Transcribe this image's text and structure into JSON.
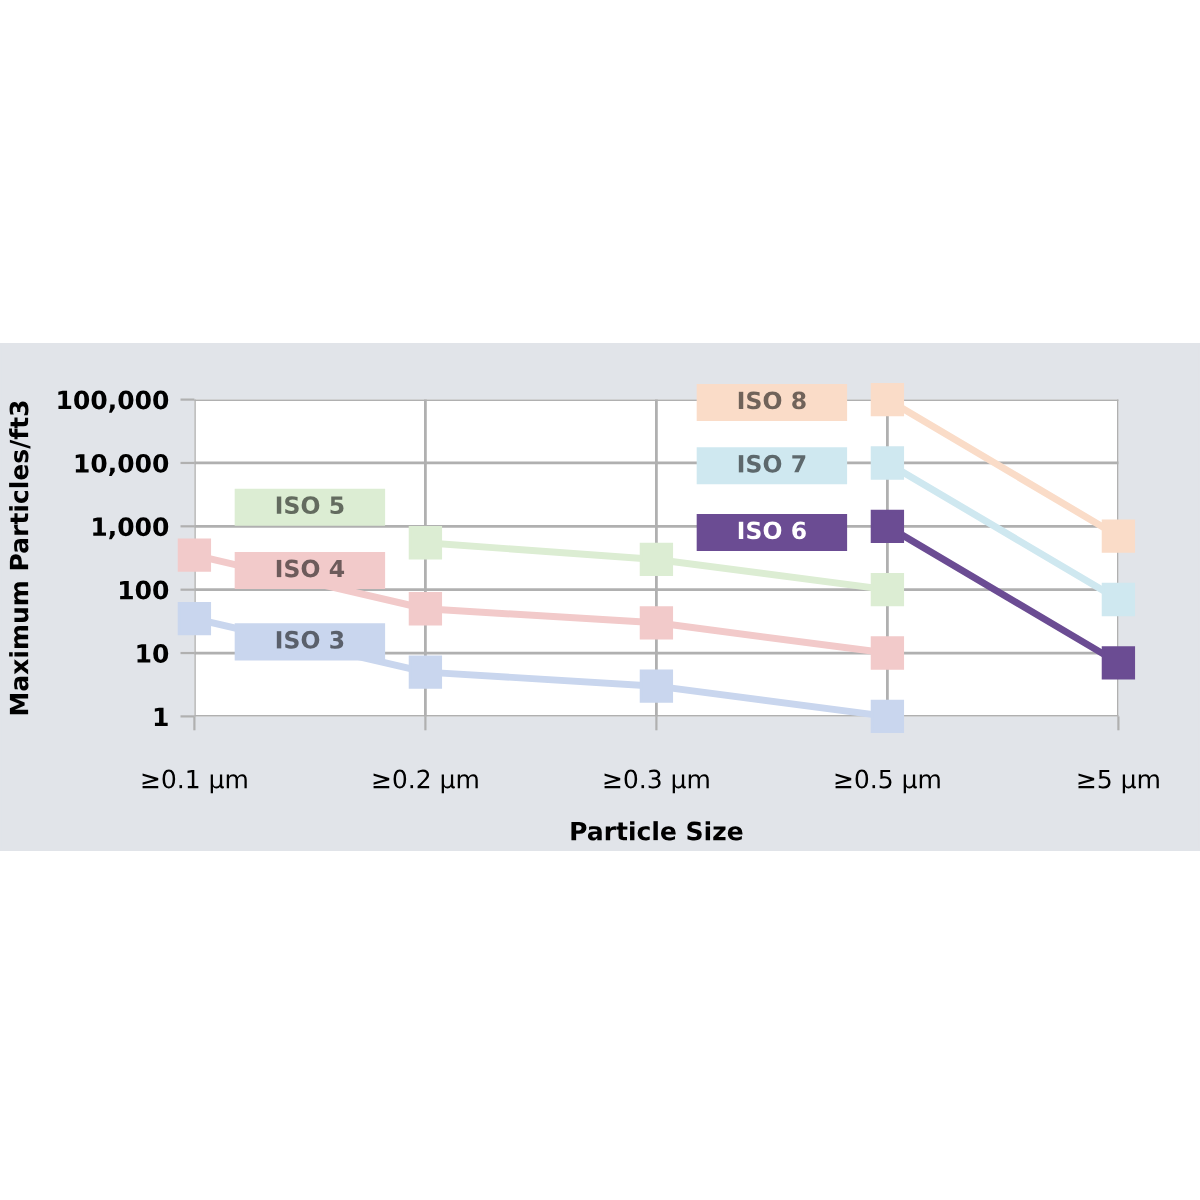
{
  "chart_data": {
    "type": "line",
    "xlabel": "Particle Size",
    "ylabel": "Maximum Particles/ft3",
    "categories": [
      "≥0.1 µm",
      "≥0.2 µm",
      "≥0.3 µm",
      "≥0.5 µm",
      "≥5 µm"
    ],
    "series": [
      {
        "name": "ISO 3",
        "color": "#c9d6ee",
        "values": [
          35,
          5,
          3,
          1,
          null
        ]
      },
      {
        "name": "ISO 4",
        "color": "#f2caca",
        "values": [
          350,
          50,
          30,
          10,
          null
        ]
      },
      {
        "name": "ISO 5",
        "color": "#dcedd3",
        "values": [
          null,
          550,
          300,
          100,
          null
        ]
      },
      {
        "name": "ISO 6",
        "color": "#6b4c93",
        "values": [
          null,
          null,
          null,
          1000,
          7
        ]
      },
      {
        "name": "ISO 7",
        "color": "#cfe8f0",
        "values": [
          null,
          null,
          null,
          10000,
          70
        ]
      },
      {
        "name": "ISO 8",
        "color": "#fadcc8",
        "values": [
          null,
          null,
          null,
          100000,
          700
        ]
      }
    ],
    "log": true,
    "ylim": [
      1,
      100000
    ],
    "yticks": [
      {
        "value": 1,
        "label": "1"
      },
      {
        "value": 10,
        "label": "10"
      },
      {
        "value": 100,
        "label": "100"
      },
      {
        "value": 1000,
        "label": "1,000"
      },
      {
        "value": 10000,
        "label": "10,000"
      },
      {
        "value": 100000,
        "label": "100,000"
      }
    ],
    "grid": true,
    "marker": "square",
    "line_style": "solid",
    "legend": false
  }
}
